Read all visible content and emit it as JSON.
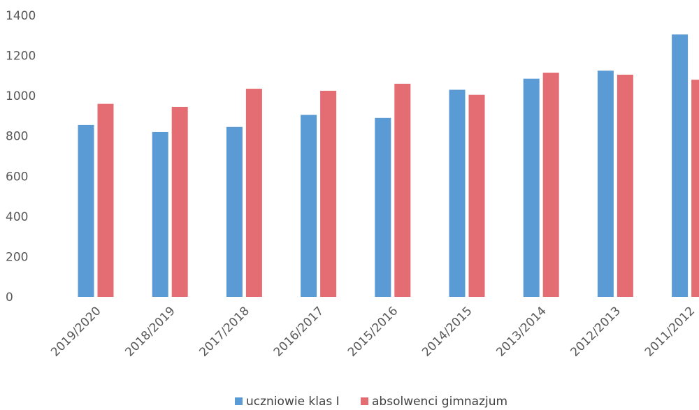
{
  "chart_data": {
    "type": "bar",
    "categories": [
      "2019/2020",
      "2018/2019",
      "2017/2018",
      "2016/2017",
      "2015/2016",
      "2014/2015",
      "2013/2014",
      "2012/2013",
      "2011/2012"
    ],
    "series": [
      {
        "name": "uczniowie klas I",
        "color": "#5b9bd5",
        "values": [
          855,
          820,
          845,
          905,
          890,
          1030,
          1085,
          1125,
          1305
        ]
      },
      {
        "name": "absolwenci gimnazjum",
        "color": "#e46c73",
        "values": [
          960,
          945,
          1035,
          1025,
          1060,
          1005,
          1115,
          1105,
          1080
        ]
      }
    ],
    "ylim": [
      0,
      1400
    ],
    "yticks": [
      "0",
      "200",
      "400",
      "600",
      "800",
      "1000",
      "1200",
      "1400"
    ],
    "grid": false,
    "legend_position": "bottom"
  }
}
